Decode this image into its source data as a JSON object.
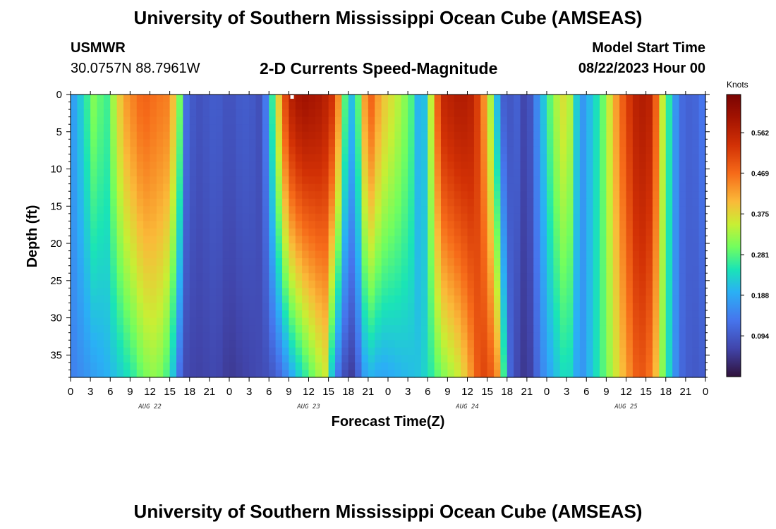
{
  "header": {
    "title": "University of Southern Mississippi Ocean Cube (AMSEAS)",
    "station": "USMWR",
    "coords": "30.0757N  88.7961W",
    "subtitle": "2-D Currents Speed-Magnitude",
    "model_start_label": "Model Start Time",
    "model_start_value": "08/22/2023 Hour 00"
  },
  "footer": {
    "title": "University of Southern Mississippi Ocean Cube (AMSEAS)"
  },
  "chart_data": {
    "type": "heatmap",
    "title": "2-D Currents Speed-Magnitude",
    "xlabel": "Forecast Time(Z)",
    "ylabel": "Depth (ft)",
    "x_ticks": [
      "0",
      "3",
      "6",
      "9",
      "12",
      "15",
      "18",
      "21",
      "0",
      "3",
      "6",
      "9",
      "12",
      "15",
      "18",
      "21",
      "0",
      "3",
      "6",
      "9",
      "12",
      "15",
      "18",
      "21",
      "0",
      "3",
      "6",
      "9",
      "12",
      "15",
      "18",
      "21",
      "0"
    ],
    "date_labels": [
      {
        "label": "AUG 22",
        "hour": 12
      },
      {
        "label": "AUG 23",
        "hour": 36
      },
      {
        "label": "AUG 24",
        "hour": 60
      },
      {
        "label": "AUG 25",
        "hour": 84
      }
    ],
    "x_range_hours": [
      0,
      96
    ],
    "y_ticks": [
      0,
      5,
      10,
      15,
      20,
      25,
      30,
      35
    ],
    "ylim": [
      0,
      38
    ],
    "y_inverted": true,
    "colorbar": {
      "unit": "Knots",
      "ticks": [
        0.094,
        0.188,
        0.281,
        0.375,
        0.469,
        0.562
      ],
      "range": [
        0.0,
        0.65
      ]
    },
    "surface_profile_hours": [
      0,
      2,
      4,
      5,
      6,
      8,
      10,
      11,
      13,
      15,
      16.5,
      17.5,
      19,
      22,
      24,
      26,
      28,
      29,
      30,
      32,
      33,
      35,
      38,
      40,
      42,
      43,
      44,
      45,
      47,
      50,
      52,
      53,
      54,
      56,
      59,
      61,
      63,
      65,
      66,
      67,
      69,
      70,
      71,
      73,
      75,
      76,
      77,
      80,
      83,
      85,
      86,
      88,
      89,
      90,
      92,
      94,
      96
    ],
    "surface_profile_knots": [
      0.16,
      0.24,
      0.33,
      0.24,
      0.3,
      0.42,
      0.46,
      0.48,
      0.46,
      0.45,
      0.3,
      0.12,
      0.08,
      0.1,
      0.08,
      0.1,
      0.09,
      0.07,
      0.2,
      0.45,
      0.56,
      0.6,
      0.58,
      0.52,
      0.2,
      0.22,
      0.35,
      0.5,
      0.4,
      0.33,
      0.26,
      0.14,
      0.28,
      0.55,
      0.58,
      0.56,
      0.4,
      0.14,
      0.06,
      0.12,
      0.05,
      0.12,
      0.18,
      0.32,
      0.38,
      0.3,
      0.15,
      0.26,
      0.46,
      0.55,
      0.58,
      0.56,
      0.4,
      0.3,
      0.12,
      0.1,
      0.14
    ],
    "deep_profile_hours": [
      0,
      2,
      4,
      6,
      8,
      10,
      11,
      13,
      15,
      16.5,
      17.5,
      19,
      22,
      24,
      26,
      28,
      30,
      32,
      33,
      35,
      37,
      38.5,
      40,
      42,
      43,
      44,
      45,
      47,
      50,
      52,
      53,
      54,
      56,
      59,
      61,
      62,
      64,
      65,
      66,
      67,
      69,
      70,
      71,
      73,
      75,
      76,
      77,
      80,
      83,
      85,
      86,
      88,
      89,
      90,
      92,
      94,
      96
    ],
    "deep_profile_knots": [
      0.14,
      0.16,
      0.18,
      0.2,
      0.23,
      0.27,
      0.3,
      0.32,
      0.26,
      0.12,
      0.07,
      0.06,
      0.07,
      0.05,
      0.06,
      0.07,
      0.08,
      0.12,
      0.17,
      0.24,
      0.31,
      0.35,
      0.15,
      0.05,
      0.06,
      0.15,
      0.2,
      0.18,
      0.2,
      0.21,
      0.22,
      0.24,
      0.3,
      0.36,
      0.45,
      0.52,
      0.48,
      0.4,
      0.14,
      0.08,
      0.04,
      0.08,
      0.14,
      0.2,
      0.25,
      0.22,
      0.15,
      0.26,
      0.38,
      0.46,
      0.5,
      0.45,
      0.35,
      0.27,
      0.12,
      0.09,
      0.1
    ],
    "surface_feature_point": {
      "hour": 33.5,
      "depth_ft": 0
    }
  }
}
